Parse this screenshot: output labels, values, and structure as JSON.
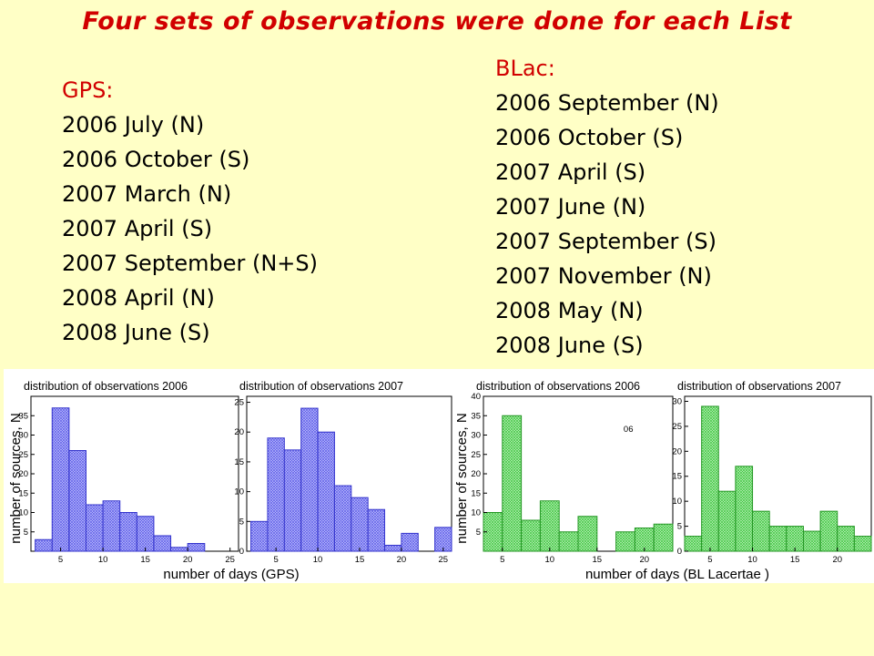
{
  "title": "Four sets of observations were done for each List",
  "gps": {
    "heading": "GPS:",
    "items": [
      "2006 July (N)",
      "2006 October (S)",
      "2007 March (N)",
      "2007 April (S)",
      "2007 September (N+S)",
      "2008 April (N)",
      "2008 June (S)"
    ]
  },
  "blac": {
    "heading": "BLac:",
    "items": [
      "2006 September (N)",
      "2006 October (S)",
      "2007 April (S)",
      "2007 June (N)",
      "2007 September (S)",
      "2007 November (N)",
      "2008 May (N)",
      "2008  June (S)"
    ]
  },
  "colors": {
    "title": "#d10000",
    "background": "#ffffc6",
    "gps_bars": "#8c8cf0",
    "blac_bars": "#7de07d"
  },
  "figures": {
    "gps": {
      "ylabel": "number of sources, N",
      "xlabel": "number of days (GPS)"
    },
    "blac": {
      "ylabel": "number of sources, N",
      "xlabel": "number of days (BL Lacertae )"
    }
  },
  "chart_data": [
    {
      "type": "bar",
      "title": "distribution of observations 2006",
      "xlabel": "number of days (GPS)",
      "ylabel": "number of sources, N",
      "x": [
        3,
        5,
        7,
        9,
        11,
        13,
        15,
        17,
        19,
        21
      ],
      "values": [
        3,
        37,
        26,
        12,
        13,
        10,
        9,
        4,
        1,
        2
      ],
      "xlim": [
        1.5,
        26
      ],
      "ylim": [
        0,
        40
      ],
      "xticks": [
        5,
        10,
        15,
        20,
        25
      ],
      "yticks": [
        5,
        10,
        15,
        20,
        25,
        30,
        35
      ],
      "color": "#8c8cf0"
    },
    {
      "type": "bar",
      "title": "distribution of observations 2007",
      "xlabel": "number of days (GPS)",
      "ylabel": "number of sources, N",
      "x": [
        3,
        5,
        7,
        9,
        11,
        13,
        15,
        17,
        19,
        21,
        25
      ],
      "values": [
        5,
        19,
        17,
        24,
        20,
        11,
        9,
        7,
        1,
        3,
        4
      ],
      "xlim": [
        1.5,
        26
      ],
      "ylim": [
        0,
        26
      ],
      "xticks": [
        5,
        10,
        15,
        20,
        25
      ],
      "yticks": [
        0,
        5,
        10,
        15,
        20,
        25
      ],
      "color": "#8c8cf0"
    },
    {
      "type": "bar",
      "title": "distribution of observations 2006",
      "annotation": "06",
      "xlabel": "number of days (BL Lacertae )",
      "ylabel": "number of sources, N",
      "x": [
        4,
        6,
        8,
        10,
        12,
        14,
        18,
        20,
        22
      ],
      "values": [
        10,
        35,
        8,
        13,
        5,
        9,
        5,
        6,
        7
      ],
      "xlim": [
        3,
        23
      ],
      "ylim": [
        0,
        40
      ],
      "xticks": [
        5,
        10,
        15,
        20
      ],
      "yticks": [
        5,
        10,
        15,
        20,
        25,
        30,
        35,
        40
      ],
      "color": "#7de07d"
    },
    {
      "type": "bar",
      "title": "distribution of observations 2007",
      "xlabel": "number of days (BL Lacertae )",
      "ylabel": "number of sources, N",
      "x": [
        3,
        5,
        7,
        9,
        11,
        13,
        15,
        17,
        19,
        21,
        23
      ],
      "values": [
        3,
        29,
        12,
        17,
        8,
        5,
        5,
        4,
        8,
        5,
        3
      ],
      "xlim": [
        2,
        24
      ],
      "ylim": [
        0,
        31
      ],
      "xticks": [
        5,
        10,
        15,
        20
      ],
      "yticks": [
        0,
        5,
        10,
        15,
        20,
        25,
        30
      ],
      "color": "#7de07d"
    }
  ]
}
